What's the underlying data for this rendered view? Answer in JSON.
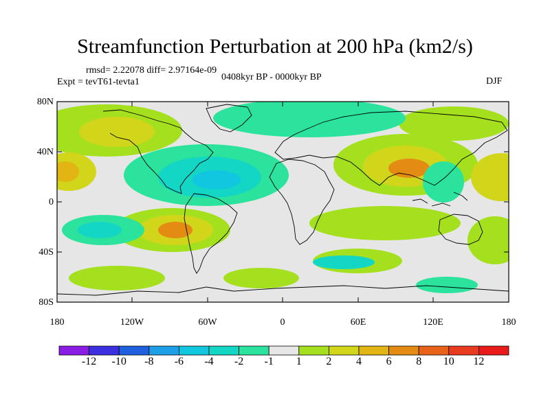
{
  "title": "Streamfunction Perturbation at 200 hPa (km2/s)",
  "stats": "rmsd= 2.22078 diff= 2.97164e-09",
  "experiment": "Expt = tevT61-tevta1",
  "period": "0408kyr BP - 0000kyr BP",
  "season": "DJF",
  "lat_labels": [
    "80N",
    "40N",
    "0",
    "40S",
    "80S"
  ],
  "lon_labels": [
    "180",
    "120W",
    "60W",
    "0",
    "60E",
    "120E",
    "180"
  ],
  "colorbar": {
    "labels": [
      "-12",
      "-10",
      "-8",
      "-6",
      "-4",
      "-2",
      "-1",
      "1",
      "2",
      "4",
      "6",
      "8",
      "10",
      "12"
    ],
    "colors": [
      "#8a1ce6",
      "#3b2fe0",
      "#1f5fe0",
      "#1c9fe6",
      "#11c6df",
      "#14d6c4",
      "#2be39c",
      "#e6e6e6",
      "#a5e01f",
      "#d2d61b",
      "#e2b514",
      "#e38b12",
      "#e8621a",
      "#e83b1f",
      "#e81a1a"
    ]
  },
  "colors": {
    "background": "#e6e6e6",
    "frame": "#000000",
    "land": "#000000"
  }
}
